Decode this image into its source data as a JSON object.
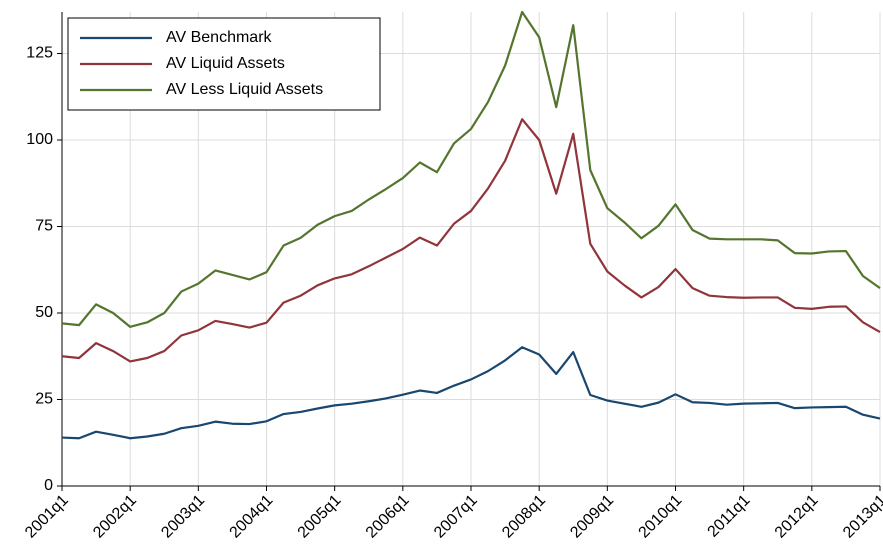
{
  "chart_data": {
    "type": "line",
    "categories": [
      "2001q1",
      null,
      null,
      null,
      "2002q1",
      null,
      null,
      null,
      "2003q1",
      null,
      null,
      null,
      "2004q1",
      null,
      null,
      null,
      "2005q1",
      null,
      null,
      null,
      "2006q1",
      null,
      null,
      null,
      "2007q1",
      null,
      null,
      null,
      "2008q1",
      null,
      null,
      null,
      "2009q1",
      null,
      null,
      null,
      "2010q1",
      null,
      null,
      null,
      "2011q1",
      null,
      null,
      null,
      "2012q1",
      null,
      null,
      null,
      "2013q1"
    ],
    "series": [
      {
        "name": "AV Benchmark",
        "color": "#1a476f",
        "values": [
          14,
          13.8,
          15.7,
          14.8,
          13.8,
          14.3,
          15.1,
          16.7,
          17.4,
          18.6,
          18,
          17.9,
          18.7,
          20.8,
          21.4,
          22.4,
          23.3,
          23.8,
          24.5,
          25.3,
          26.4,
          27.6,
          26.9,
          29,
          30.8,
          33.2,
          36.3,
          40.1,
          38,
          32.4,
          38.7,
          26.3,
          24.7,
          23.8,
          22.9,
          24.1,
          26.5,
          24.2,
          24,
          23.5,
          23.8,
          23.9,
          24,
          22.5,
          22.7,
          22.8,
          22.9,
          20.6,
          19.5
        ]
      },
      {
        "name": "AV Liquid Assets",
        "color": "#90353b",
        "values": [
          37.5,
          37,
          41.3,
          39,
          36,
          37,
          39,
          43.5,
          45,
          47.7,
          46.8,
          45.8,
          47.2,
          53,
          55,
          58,
          60,
          61.2,
          63.5,
          66,
          68.5,
          71.8,
          69.5,
          75.8,
          79.5,
          86,
          94,
          106,
          100,
          84.5,
          101.8,
          70,
          62,
          58,
          54.5,
          57.5,
          62.7,
          57.2,
          55,
          54.6,
          54.4,
          54.5,
          54.5,
          51.5,
          51.2,
          51.8,
          51.9,
          47.3,
          44.5
        ]
      },
      {
        "name": "AV Less Liquid Assets",
        "color": "#55752f",
        "values": [
          47,
          46.5,
          52.5,
          50,
          46,
          47.3,
          50,
          56.2,
          58.5,
          62.3,
          61,
          59.7,
          61.8,
          69.5,
          71.7,
          75.5,
          78,
          79.5,
          82.8,
          85.8,
          89,
          93.5,
          90.7,
          99,
          103.2,
          111,
          121.5,
          137,
          129.7,
          109.5,
          133.2,
          91.3,
          80.3,
          76.2,
          71.6,
          75.2,
          81.4,
          74,
          71.5,
          71.3,
          71.3,
          71.3,
          71,
          67.3,
          67.2,
          67.8,
          67.9,
          60.7,
          57.2
        ]
      }
    ],
    "ylim": [
      0,
      137
    ],
    "yticks": [
      0,
      25,
      50,
      75,
      100,
      125
    ],
    "grid": true,
    "legend": "top-left"
  }
}
